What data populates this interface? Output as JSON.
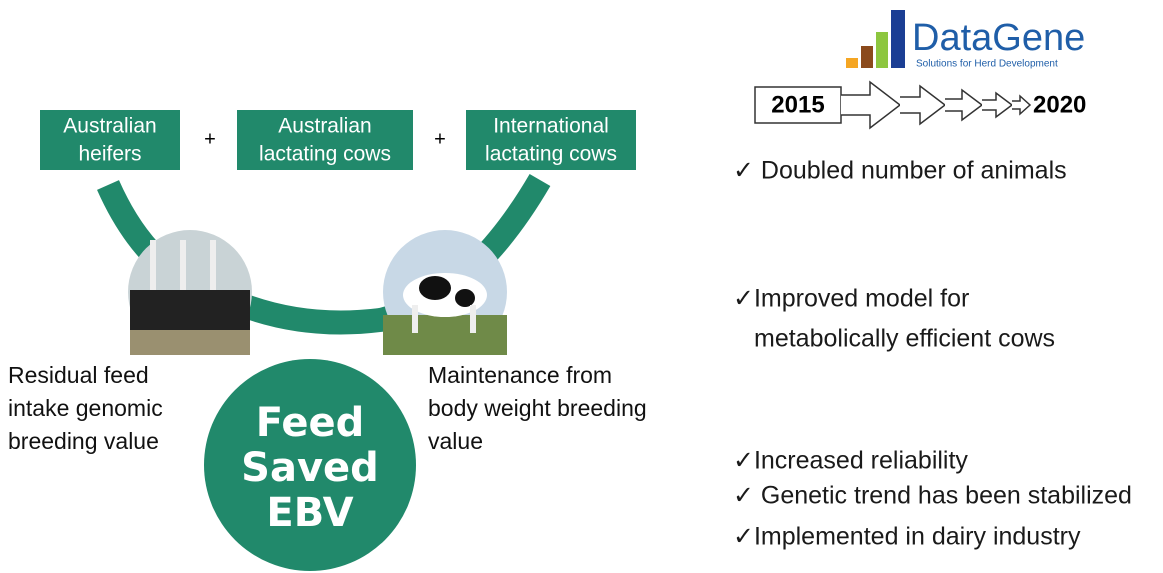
{
  "boxes": [
    {
      "lines": [
        "Australian",
        "heifers"
      ]
    },
    {
      "lines": [
        "Australian",
        "lactating cows"
      ]
    },
    {
      "lines": [
        "International",
        "lactating cows"
      ]
    }
  ],
  "plus_signs": [
    "+",
    "+"
  ],
  "captions": [
    {
      "lines": [
        "Residual feed",
        "intake genomic",
        "breeding value"
      ]
    },
    {
      "lines": [
        "Maintenance from",
        "body weight breeding",
        "value"
      ]
    }
  ],
  "center": {
    "lines": [
      "Feed",
      "Saved",
      "EBV"
    ]
  },
  "logo": {
    "name": "DataGene",
    "tagline": "Solutions for Herd Development"
  },
  "timeline": {
    "start": "2015",
    "end": "2020"
  },
  "checklist": [
    {
      "lines": [
        "✓ Doubled number of animals"
      ]
    },
    {
      "lines": [
        "✓Improved model for",
        "metabolically efficient cows"
      ]
    },
    {
      "lines": [
        "✓Increased reliability"
      ]
    },
    {
      "lines": [
        "✓ Genetic trend has been stabilized"
      ]
    },
    {
      "lines": [
        "✓Implemented in dairy industry"
      ]
    }
  ]
}
